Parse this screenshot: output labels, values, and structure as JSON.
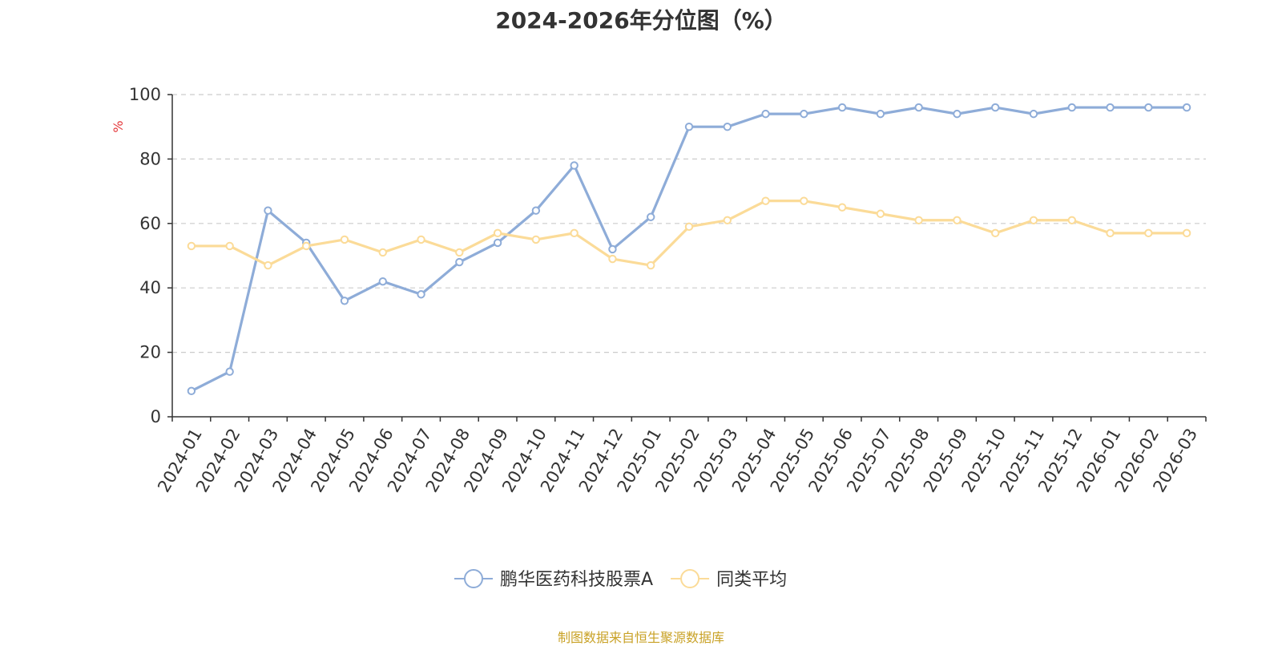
{
  "chart_data": {
    "type": "line",
    "title": "2024-2026年分位图（%）",
    "ylabel": "%",
    "xlabel": "",
    "ylim": [
      0,
      100
    ],
    "yticks": [
      0,
      20,
      40,
      60,
      80,
      100
    ],
    "grid": true,
    "legend_position": "bottom",
    "categories": [
      "2024-01",
      "2024-02",
      "2024-03",
      "2024-04",
      "2024-05",
      "2024-06",
      "2024-07",
      "2024-08",
      "2024-09",
      "2024-10",
      "2024-11",
      "2024-12",
      "2025-01",
      "2025-02",
      "2025-03",
      "2025-04",
      "2025-05",
      "2025-06",
      "2025-07",
      "2025-08",
      "2025-09",
      "2025-10",
      "2025-11",
      "2025-12",
      "2026-01",
      "2026-02",
      "2026-03"
    ],
    "series": [
      {
        "name": "鹏华医药科技股票A",
        "color": "#8eacd8",
        "values": [
          8,
          14,
          64,
          54,
          36,
          42,
          38,
          48,
          54,
          64,
          78,
          52,
          62,
          90,
          90,
          94,
          94,
          96,
          94,
          96,
          94,
          96,
          94,
          96,
          96,
          96,
          96
        ]
      },
      {
        "name": "同类平均",
        "color": "#fbdb98",
        "values": [
          53,
          53,
          47,
          53,
          55,
          51,
          55,
          51,
          57,
          55,
          57,
          49,
          47,
          59,
          61,
          67,
          67,
          65,
          63,
          61,
          61,
          57,
          61,
          61,
          57,
          57,
          57
        ]
      }
    ]
  },
  "footer": {
    "source": "制图数据来自恒生聚源数据库"
  }
}
